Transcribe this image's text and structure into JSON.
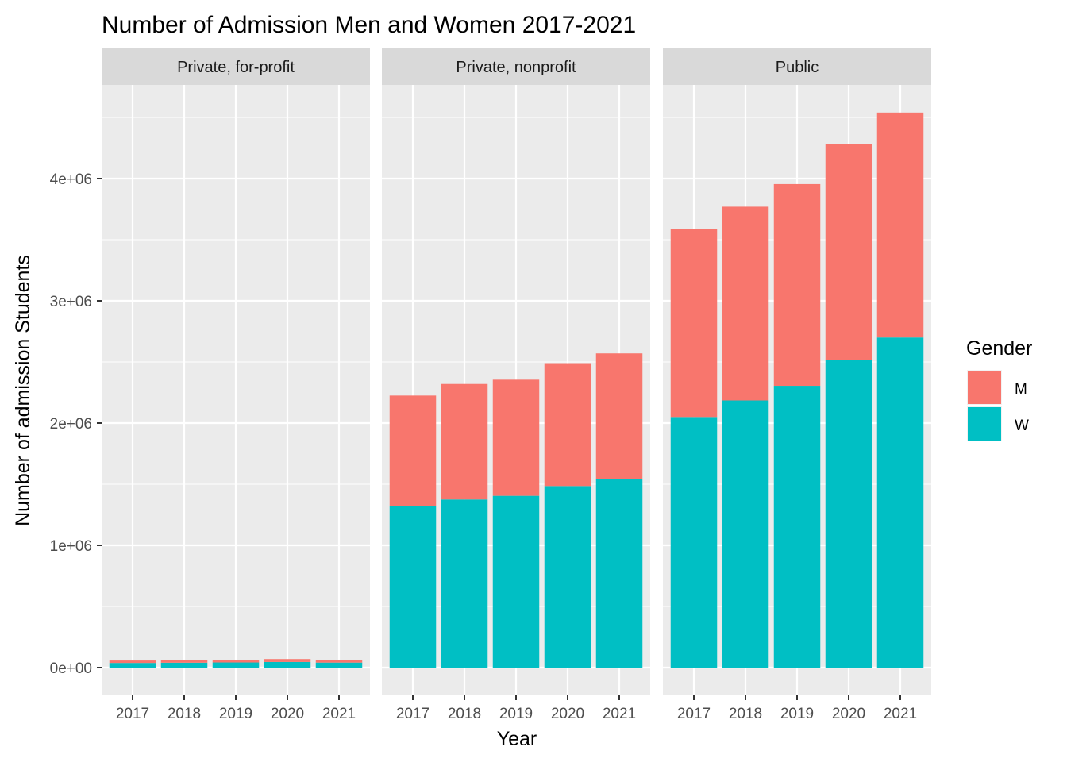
{
  "chart_data": {
    "type": "bar",
    "stacked": true,
    "faceted": true,
    "title": "Number of Admission Men and Women 2017-2021",
    "xlabel": "Year",
    "ylabel": "Number of admission Students",
    "ylim": [
      -200000,
      4800000
    ],
    "yticks": [
      0,
      1000000,
      2000000,
      3000000,
      4000000
    ],
    "ytick_labels": [
      "0e+00",
      "1e+06",
      "2e+06",
      "3e+06",
      "4e+06"
    ],
    "categories": [
      "2017",
      "2018",
      "2019",
      "2020",
      "2021"
    ],
    "grid": true,
    "legend": {
      "title": "Gender",
      "placement": "right",
      "items": [
        {
          "key": "M",
          "label": "M",
          "color": "#F8766D"
        },
        {
          "key": "W",
          "label": "W",
          "color": "#00BFC4"
        }
      ]
    },
    "facets": [
      {
        "label": "Private, for-profit",
        "series": [
          {
            "name": "W",
            "values": [
              38000,
              40000,
              42000,
              46000,
              41000
            ]
          },
          {
            "name": "M",
            "values": [
              20000,
              21000,
              22000,
              24000,
              21000
            ]
          }
        ]
      },
      {
        "label": "Private, nonprofit",
        "series": [
          {
            "name": "W",
            "values": [
              1320000,
              1375000,
              1405000,
              1485000,
              1545000
            ]
          },
          {
            "name": "M",
            "values": [
              905000,
              945000,
              950000,
              1005000,
              1025000
            ]
          }
        ]
      },
      {
        "label": "Public",
        "series": [
          {
            "name": "W",
            "values": [
              2050000,
              2185000,
              2305000,
              2515000,
              2700000
            ]
          },
          {
            "name": "M",
            "values": [
              1535000,
              1585000,
              1650000,
              1765000,
              1840000
            ]
          }
        ]
      }
    ]
  }
}
